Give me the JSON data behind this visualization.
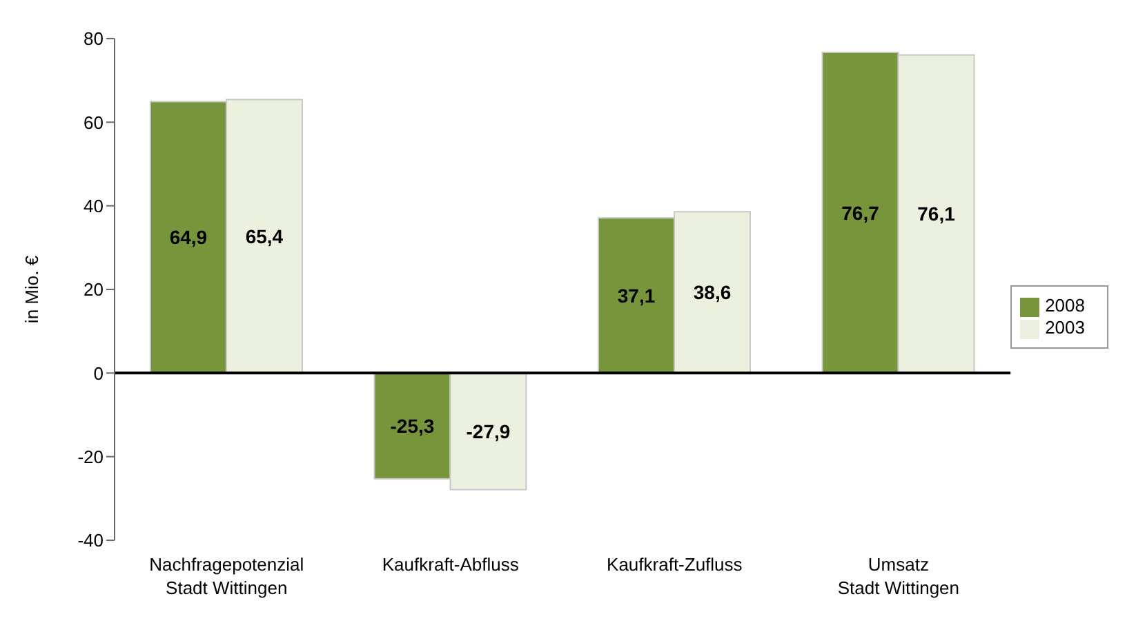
{
  "chart_data": {
    "type": "bar",
    "ylabel": "in Mio. €",
    "categories": [
      "Nachfragepotenzial\nStadt Wittingen",
      "Kaufkraft-Abfluss",
      "Kaufkraft-Zufluss",
      "Umsatz\nStadt Wittingen"
    ],
    "series": [
      {
        "name": "2008",
        "color": "#77963b",
        "values": [
          64.9,
          -25.3,
          37.1,
          76.7
        ],
        "value_labels": [
          "64,9",
          "-25,3",
          "37,1",
          "76,7"
        ]
      },
      {
        "name": "2003",
        "color": "#ebf1de",
        "values": [
          65.4,
          -27.9,
          38.6,
          76.1
        ],
        "value_labels": [
          "65,4",
          "-27,9",
          "38,6",
          "76,1"
        ]
      }
    ],
    "ylim": [
      -40,
      80
    ],
    "yticks": [
      -40,
      -20,
      0,
      20,
      40,
      60,
      80
    ],
    "legend": "right"
  }
}
